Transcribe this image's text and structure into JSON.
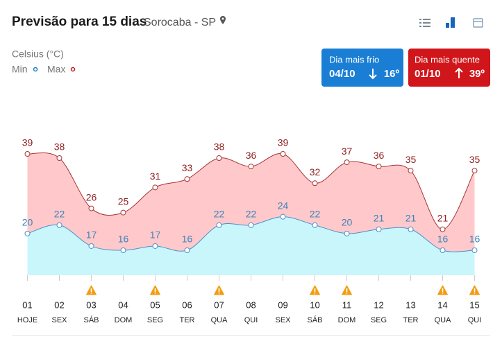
{
  "header": {
    "title": "Previsão para 15 dias",
    "location": "Sorocaba - SP"
  },
  "unit": "Celsius (°C)",
  "cold_box": {
    "title": "Dia mais frio",
    "date": "04/10",
    "temp": "16º"
  },
  "hot_box": {
    "title": "Dia mais quente",
    "date": "01/10",
    "temp": "39º"
  },
  "chart_data": {
    "type": "line",
    "categories": [
      "01",
      "02",
      "03",
      "04",
      "05",
      "06",
      "07",
      "08",
      "09",
      "10",
      "11",
      "12",
      "13",
      "14",
      "15"
    ],
    "weekdays": [
      "HOJE",
      "SEX",
      "SÁB",
      "DOM",
      "SEG",
      "TER",
      "QUA",
      "QUI",
      "SEX",
      "SÁB",
      "DOM",
      "SEG",
      "TER",
      "QUA",
      "QUI"
    ],
    "alerts": [
      false,
      false,
      true,
      false,
      true,
      false,
      true,
      false,
      false,
      true,
      true,
      false,
      false,
      true,
      true
    ],
    "series": [
      {
        "name": "Min",
        "color": "#4a90c8",
        "label_color": "#3b82b8",
        "fill": "#c9f6fb",
        "values": [
          20,
          22,
          17,
          16,
          17,
          16,
          22,
          22,
          24,
          22,
          20,
          21,
          21,
          16,
          16
        ]
      },
      {
        "name": "Max",
        "color": "#a83232",
        "label_color": "#8e1f1f",
        "fill": "#ffc9cb",
        "values": [
          39,
          38,
          26,
          25,
          31,
          33,
          38,
          36,
          39,
          32,
          37,
          36,
          35,
          21,
          35
        ]
      }
    ]
  }
}
